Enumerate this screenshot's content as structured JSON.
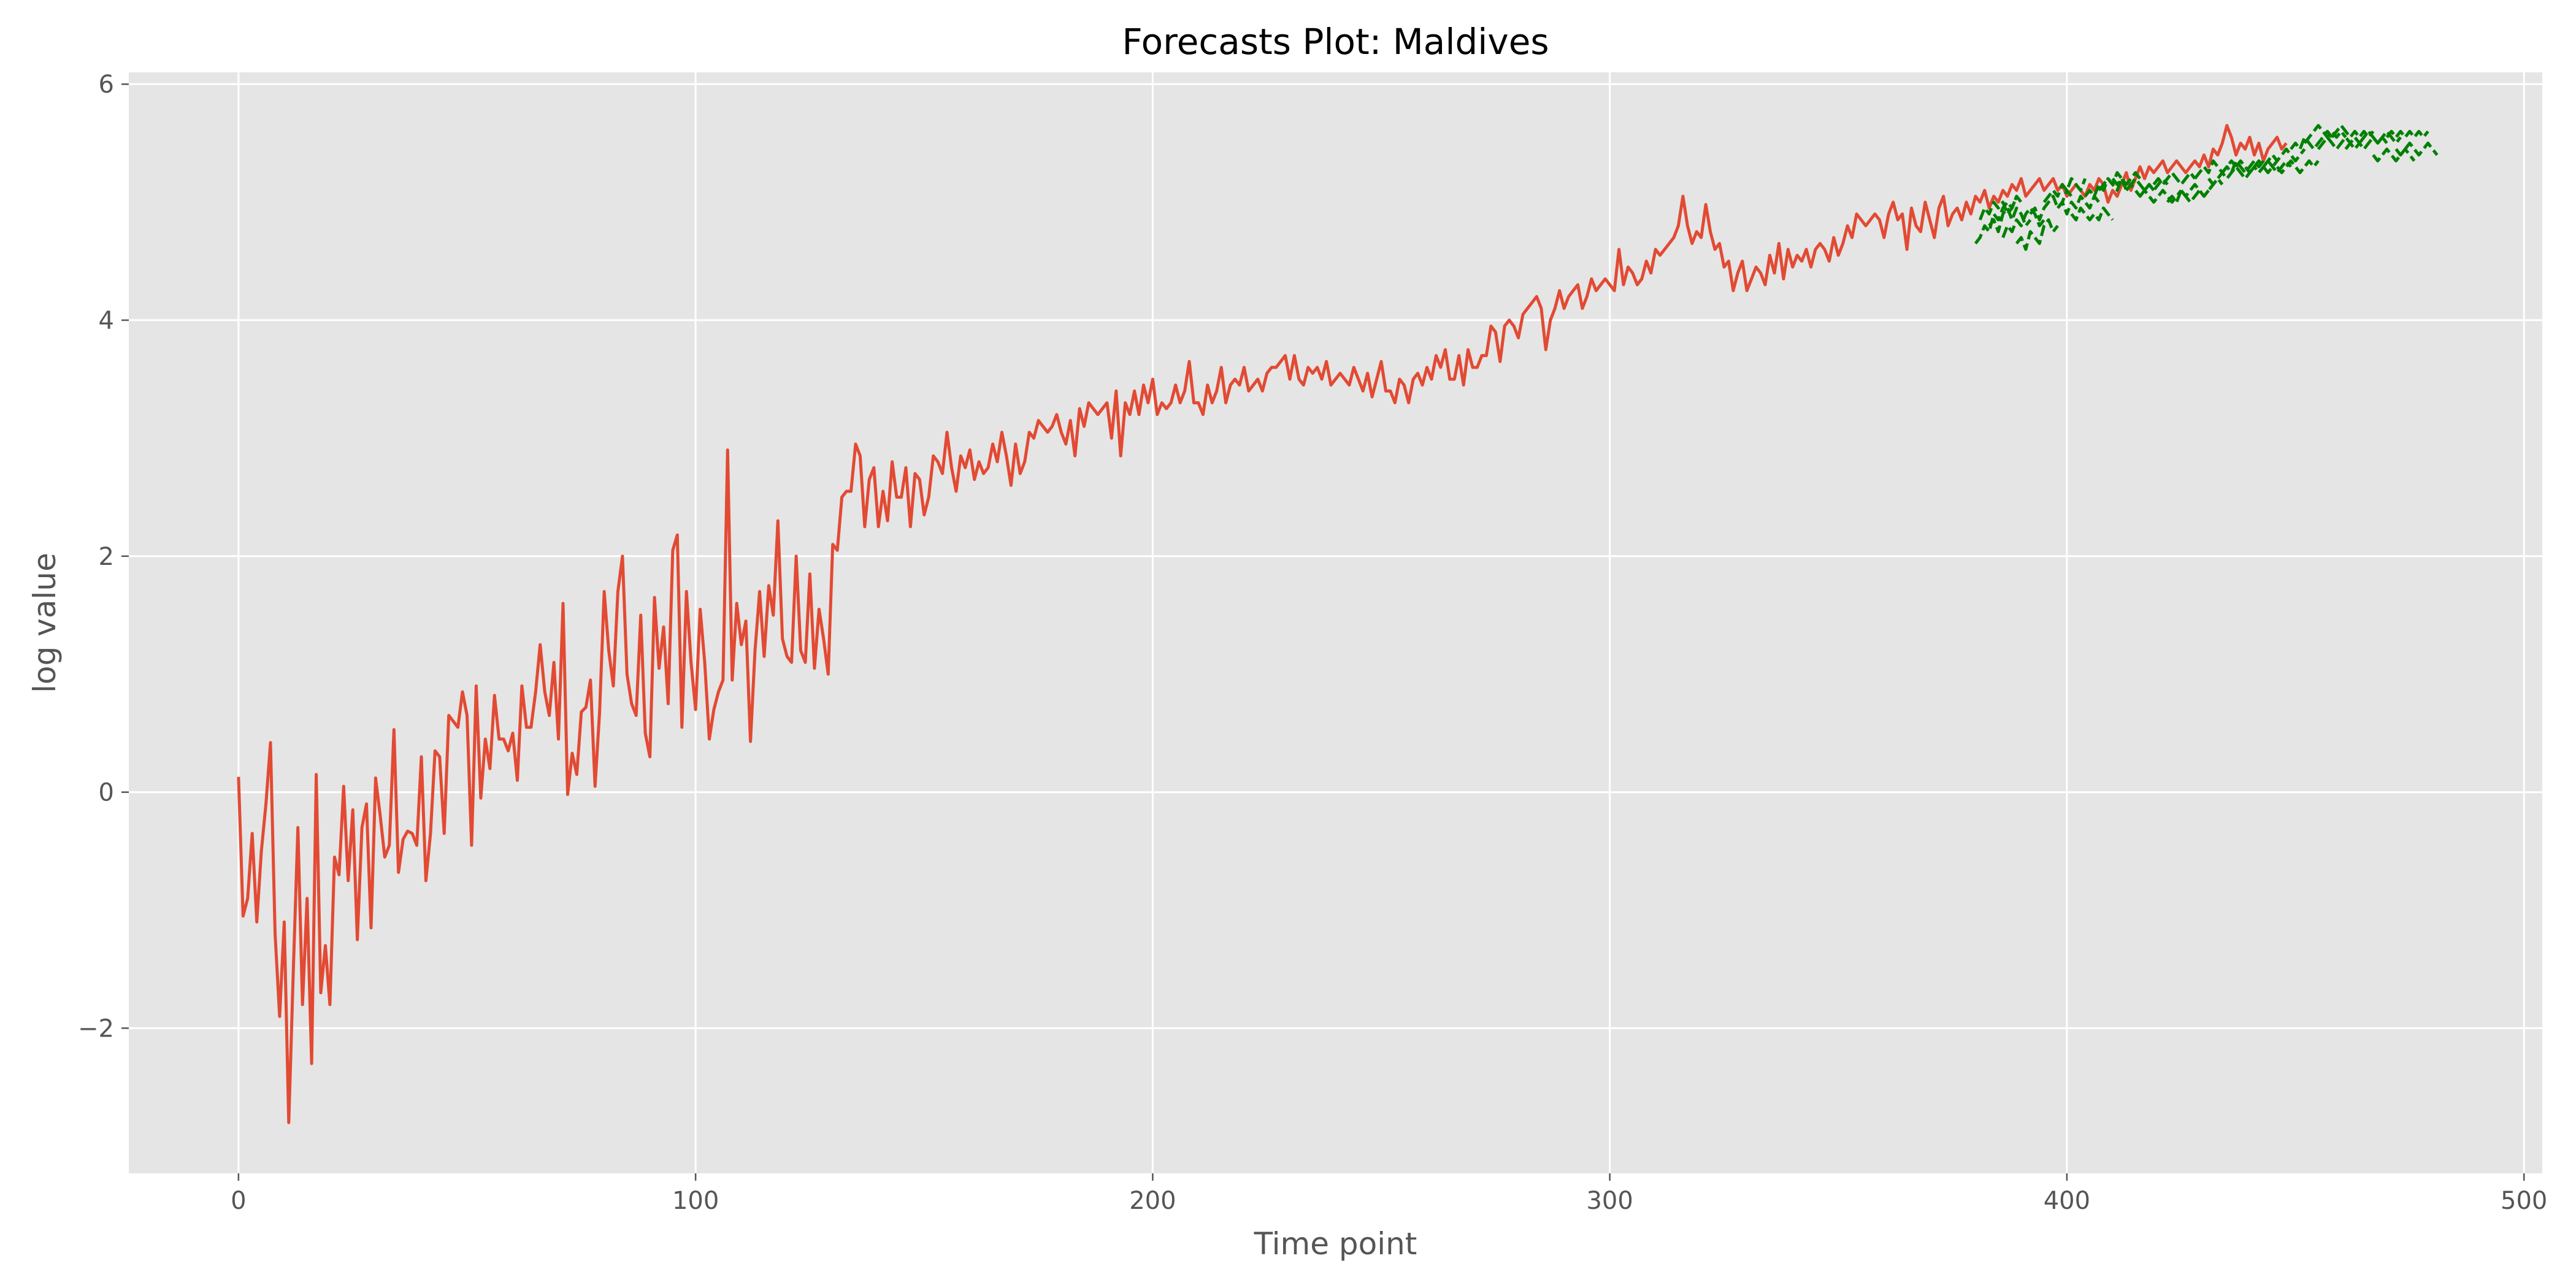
{
  "chart_data": {
    "type": "line",
    "title": "Forecasts Plot: Maldives",
    "xlabel": "Time point",
    "ylabel": "log value",
    "xlim": [
      -24,
      504
    ],
    "ylim": [
      -3.23,
      6.1
    ],
    "xticks": [
      0,
      100,
      200,
      300,
      400,
      500
    ],
    "yticks": [
      -2,
      0,
      2,
      4,
      6
    ],
    "xtick_labels": [
      "0",
      "100",
      "200",
      "300",
      "400",
      "500"
    ],
    "ytick_labels": [
      "−2",
      "0",
      "2",
      "4",
      "6"
    ],
    "grid": true,
    "legend": "none",
    "colors": {
      "plot_bg": "#e5e5e5",
      "grid": "#ffffff",
      "actual": "#e24a33",
      "forecast": "#008000"
    },
    "series": [
      {
        "kind": "actual",
        "style": "solid",
        "x_start": 0,
        "x_step": 1,
        "y": [
          0.13,
          -1.05,
          -0.9,
          -0.35,
          -1.1,
          -0.5,
          -0.1,
          0.42,
          -1.2,
          -1.9,
          -1.1,
          -2.8,
          -1.5,
          -0.3,
          -1.8,
          -0.9,
          -2.3,
          0.15,
          -1.7,
          -1.3,
          -1.8,
          -0.55,
          -0.7,
          0.05,
          -0.75,
          -0.15,
          -1.25,
          -0.3,
          -0.1,
          -1.15,
          0.12,
          -0.2,
          -0.55,
          -0.45,
          0.53,
          -0.68,
          -0.4,
          -0.33,
          -0.35,
          -0.45,
          0.3,
          -0.75,
          -0.35,
          0.35,
          0.3,
          -0.35,
          0.65,
          0.6,
          0.55,
          0.85,
          0.65,
          -0.45,
          0.9,
          -0.05,
          0.45,
          0.2,
          0.82,
          0.45,
          0.45,
          0.35,
          0.5,
          0.1,
          0.9,
          0.55,
          0.55,
          0.85,
          1.25,
          0.85,
          0.65,
          1.1,
          0.45,
          1.6,
          -0.02,
          0.33,
          0.15,
          0.68,
          0.72,
          0.95,
          0.05,
          0.68,
          1.7,
          1.2,
          0.9,
          1.7,
          2.0,
          1.0,
          0.75,
          0.65,
          1.5,
          0.5,
          0.3,
          1.65,
          1.05,
          1.4,
          0.75,
          2.05,
          2.18,
          0.55,
          1.7,
          1.1,
          0.7,
          1.55,
          1.1,
          0.45,
          0.7,
          0.85,
          0.95,
          2.9,
          0.95,
          1.6,
          1.25,
          1.45,
          0.43,
          1.2,
          1.7,
          1.15,
          1.75,
          1.5,
          2.3,
          1.3,
          1.15,
          1.1,
          2.0,
          1.2,
          1.1,
          1.85,
          1.05,
          1.55,
          1.3,
          1.0,
          2.1,
          2.05,
          2.5,
          2.55,
          2.55,
          2.95,
          2.85,
          2.25,
          2.65,
          2.75,
          2.25,
          2.55,
          2.3,
          2.8,
          2.5,
          2.5,
          2.75,
          2.25,
          2.7,
          2.65,
          2.35,
          2.5,
          2.85,
          2.8,
          2.7,
          3.05,
          2.75,
          2.55,
          2.85,
          2.75,
          2.9,
          2.65,
          2.8,
          2.7,
          2.75,
          2.95,
          2.8,
          3.05,
          2.85,
          2.6,
          2.95,
          2.7,
          2.8,
          3.05,
          3.0,
          3.15,
          3.1,
          3.05,
          3.1,
          3.2,
          3.05,
          2.95,
          3.15,
          2.85,
          3.25,
          3.1,
          3.3,
          3.25,
          3.2,
          3.25,
          3.3,
          3.0,
          3.4,
          2.85,
          3.3,
          3.2,
          3.4,
          3.2,
          3.45,
          3.3,
          3.5,
          3.2,
          3.3,
          3.25,
          3.3,
          3.45,
          3.3,
          3.4,
          3.65,
          3.3,
          3.3,
          3.2,
          3.45,
          3.3,
          3.4,
          3.6,
          3.3,
          3.45,
          3.5,
          3.45,
          3.6,
          3.4,
          3.45,
          3.5,
          3.4,
          3.55,
          3.6,
          3.6,
          3.65,
          3.7,
          3.5,
          3.7,
          3.5,
          3.45,
          3.6,
          3.55,
          3.6,
          3.5,
          3.65,
          3.45,
          3.5,
          3.55,
          3.5,
          3.45,
          3.6,
          3.5,
          3.4,
          3.55,
          3.35,
          3.5,
          3.65,
          3.4,
          3.4,
          3.3,
          3.5,
          3.45,
          3.3,
          3.5,
          3.55,
          3.45,
          3.6,
          3.5,
          3.7,
          3.6,
          3.75,
          3.5,
          3.5,
          3.7,
          3.45,
          3.75,
          3.6,
          3.6,
          3.7,
          3.7,
          3.95,
          3.9,
          3.65,
          3.95,
          4.0,
          3.95,
          3.85,
          4.05,
          4.1,
          4.15,
          4.2,
          4.1,
          3.75,
          4.0,
          4.1,
          4.25,
          4.1,
          4.2,
          4.25,
          4.3,
          4.1,
          4.2,
          4.35,
          4.25,
          4.3,
          4.35,
          4.3,
          4.25,
          4.6,
          4.3,
          4.45,
          4.4,
          4.3,
          4.35,
          4.5,
          4.4,
          4.6,
          4.55,
          4.6,
          4.65,
          4.7,
          4.8,
          5.05,
          4.8,
          4.65,
          4.75,
          4.7,
          4.98,
          4.75,
          4.6,
          4.65,
          4.45,
          4.5,
          4.25,
          4.4,
          4.5,
          4.25,
          4.35,
          4.45,
          4.4,
          4.3,
          4.55,
          4.4,
          4.65,
          4.35,
          4.6,
          4.45,
          4.55,
          4.5,
          4.6,
          4.45,
          4.6,
          4.65,
          4.6,
          4.5,
          4.7,
          4.55,
          4.65,
          4.8,
          4.7,
          4.9,
          4.85,
          4.8,
          4.85,
          4.9,
          4.85,
          4.7,
          4.9,
          5.0,
          4.85,
          4.9,
          4.6,
          4.95,
          4.8,
          4.75,
          5.0,
          4.85,
          4.7,
          4.95,
          5.05,
          4.8,
          4.9,
          4.95,
          4.85,
          5.0,
          4.9,
          5.05,
          5.0,
          5.1,
          4.95,
          5.05,
          5.0,
          5.1,
          5.05,
          5.15,
          5.1,
          5.2,
          5.05,
          5.1,
          5.15,
          5.2,
          5.1,
          5.15,
          5.2,
          5.1,
          5.15,
          5.05,
          5.1,
          5.15,
          5.1,
          5.05,
          5.15,
          5.1,
          5.2,
          5.15,
          5.0,
          5.1,
          5.05,
          5.15,
          5.25,
          5.1,
          5.2,
          5.3,
          5.2,
          5.3,
          5.25,
          5.3,
          5.35,
          5.25,
          5.3,
          5.35,
          5.3,
          5.25,
          5.3,
          5.35,
          5.3,
          5.4,
          5.3,
          5.45,
          5.4,
          5.5,
          5.65,
          5.55,
          5.4,
          5.5,
          5.45,
          5.55,
          5.4,
          5.5,
          5.35,
          5.45,
          5.5,
          5.55,
          5.45,
          5.5
        ]
      },
      {
        "kind": "forecast",
        "style": "dashed",
        "segments": [
          {
            "x_start": 380,
            "y": [
              4.65,
              4.7,
              4.8,
              4.75,
              4.9,
              4.85,
              4.95,
              5.0,
              4.95,
              5.05
            ]
          },
          {
            "x_start": 381,
            "y": [
              4.85,
              4.95,
              4.9,
              5.0,
              4.95,
              5.0,
              4.9,
              4.95,
              5.05,
              5.0
            ]
          },
          {
            "x_start": 383,
            "y": [
              4.8,
              4.85,
              4.75,
              4.9,
              4.95,
              4.85,
              4.95,
              4.9,
              4.8,
              4.85
            ]
          },
          {
            "x_start": 386,
            "y": [
              4.7,
              4.8,
              4.75,
              4.85,
              4.8,
              4.9,
              4.95,
              4.9,
              4.8,
              4.85
            ]
          },
          {
            "x_start": 389,
            "y": [
              4.65,
              4.7,
              4.6,
              4.75,
              4.7,
              4.65,
              4.8,
              4.85,
              4.75,
              4.8
            ]
          },
          {
            "x_start": 392,
            "y": [
              4.9,
              4.95,
              4.85,
              4.95,
              5.0,
              5.05,
              4.95,
              5.0,
              5.1,
              5.05
            ]
          },
          {
            "x_start": 395,
            "y": [
              5.0,
              5.05,
              5.1,
              5.05,
              5.15,
              5.1,
              5.2,
              5.15,
              5.1,
              5.2
            ]
          },
          {
            "x_start": 398,
            "y": [
              4.95,
              5.0,
              4.9,
              5.0,
              4.95,
              5.05,
              5.0,
              4.95,
              5.05,
              5.0
            ]
          },
          {
            "x_start": 401,
            "y": [
              4.9,
              4.85,
              4.95,
              4.9,
              4.85,
              4.9,
              4.85,
              4.95,
              4.9,
              4.85
            ]
          },
          {
            "x_start": 404,
            "y": [
              5.05,
              5.1,
              5.05,
              5.15,
              5.1,
              5.2,
              5.15,
              5.1,
              5.2,
              5.15
            ]
          },
          {
            "x_start": 407,
            "y": [
              5.1,
              5.15,
              5.2,
              5.15,
              5.25,
              5.2,
              5.15,
              5.2,
              5.25,
              5.2
            ]
          },
          {
            "x_start": 410,
            "y": [
              5.2,
              5.15,
              5.2,
              5.1,
              5.15,
              5.2,
              5.15,
              5.1,
              5.15,
              5.1
            ]
          },
          {
            "x_start": 413,
            "y": [
              5.1,
              5.15,
              5.1,
              5.05,
              5.1,
              5.15,
              5.1,
              5.15,
              5.2,
              5.15
            ]
          },
          {
            "x_start": 416,
            "y": [
              5.05,
              5.1,
              5.05,
              5.0,
              5.05,
              5.1,
              5.05,
              5.0,
              5.05,
              5.1
            ]
          },
          {
            "x_start": 419,
            "y": [
              5.15,
              5.2,
              5.15,
              5.2,
              5.25,
              5.2,
              5.15,
              5.2,
              5.25,
              5.2
            ]
          },
          {
            "x_start": 422,
            "y": [
              5.0,
              5.05,
              5.0,
              5.1,
              5.05,
              5.0,
              5.05,
              5.1,
              5.05,
              5.1
            ]
          },
          {
            "x_start": 425,
            "y": [
              5.1,
              5.05,
              5.1,
              5.15,
              5.1,
              5.05,
              5.1,
              5.15,
              5.2,
              5.15
            ]
          },
          {
            "x_start": 428,
            "y": [
              5.2,
              5.25,
              5.3,
              5.25,
              5.35,
              5.3,
              5.25,
              5.3,
              5.35,
              5.3
            ]
          },
          {
            "x_start": 431,
            "y": [
              5.2,
              5.15,
              5.2,
              5.25,
              5.2,
              5.25,
              5.3,
              5.25,
              5.2,
              5.25
            ]
          },
          {
            "x_start": 434,
            "y": [
              5.25,
              5.3,
              5.25,
              5.35,
              5.3,
              5.25,
              5.3,
              5.35,
              5.3,
              5.35
            ]
          },
          {
            "x_start": 437,
            "y": [
              5.3,
              5.35,
              5.3,
              5.25,
              5.3,
              5.35,
              5.3,
              5.25,
              5.3,
              5.35
            ]
          },
          {
            "x_start": 440,
            "y": [
              5.25,
              5.3,
              5.25,
              5.3,
              5.35,
              5.3,
              5.25,
              5.3,
              5.35,
              5.3
            ]
          },
          {
            "x_start": 443,
            "y": [
              5.3,
              5.35,
              5.4,
              5.35,
              5.4,
              5.45,
              5.4,
              5.35,
              5.4,
              5.45
            ]
          },
          {
            "x_start": 446,
            "y": [
              5.3,
              5.25,
              5.3,
              5.35,
              5.3,
              5.25,
              5.3,
              5.35,
              5.3,
              5.35
            ]
          },
          {
            "x_start": 449,
            "y": [
              5.45,
              5.5,
              5.45,
              5.55,
              5.5,
              5.45,
              5.5,
              5.55,
              5.6,
              5.55
            ]
          },
          {
            "x_start": 452,
            "y": [
              5.5,
              5.55,
              5.6,
              5.65,
              5.6,
              5.55,
              5.6,
              5.55,
              5.6,
              5.55
            ]
          },
          {
            "x_start": 455,
            "y": [
              5.45,
              5.5,
              5.55,
              5.5,
              5.45,
              5.5,
              5.55,
              5.5,
              5.45,
              5.5
            ]
          },
          {
            "x_start": 458,
            "y": [
              5.55,
              5.6,
              5.65,
              5.6,
              5.55,
              5.6,
              5.55,
              5.6,
              5.55,
              5.6
            ]
          },
          {
            "x_start": 461,
            "y": [
              5.45,
              5.5,
              5.55,
              5.5,
              5.45,
              5.5,
              5.55,
              5.5,
              5.55,
              5.5
            ]
          },
          {
            "x_start": 464,
            "y": [
              5.5,
              5.55,
              5.6,
              5.55,
              5.5,
              5.55,
              5.6,
              5.55,
              5.5,
              5.55
            ]
          },
          {
            "x_start": 467,
            "y": [
              5.4,
              5.35,
              5.4,
              5.45,
              5.4,
              5.35,
              5.4,
              5.45,
              5.4,
              5.35
            ]
          },
          {
            "x_start": 470,
            "y": [
              5.55,
              5.6,
              5.55,
              5.6,
              5.55,
              5.6,
              5.55,
              5.6,
              5.55,
              5.6
            ]
          },
          {
            "x_start": 472,
            "y": [
              5.45,
              5.4,
              5.45,
              5.5,
              5.45,
              5.4,
              5.45,
              5.5,
              5.45,
              5.4
            ]
          }
        ]
      }
    ]
  }
}
